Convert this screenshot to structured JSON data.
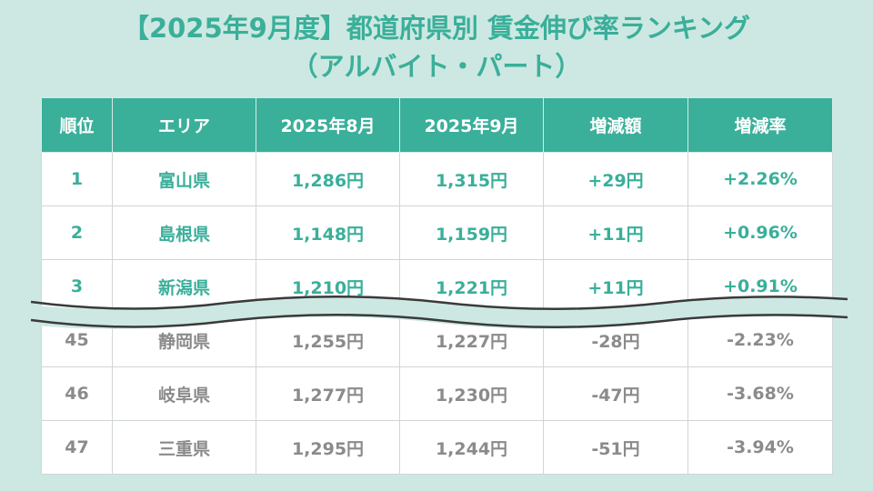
{
  "title": {
    "line1": "【2025年9月度】都道府県別 賃金伸び率ランキング",
    "line2": "（アルバイト・パート）"
  },
  "table": {
    "headers": [
      "順位",
      "エリア",
      "2025年8月",
      "2025年9月",
      "増減額",
      "増減率"
    ],
    "top_rows": [
      [
        "1",
        "富山県",
        "1,286円",
        "1,315円",
        "+29円",
        "+2.26%"
      ],
      [
        "2",
        "島根県",
        "1,148円",
        "1,159円",
        "+11円",
        "+0.96%"
      ],
      [
        "3",
        "新潟県",
        "1,210円",
        "1,221円",
        "+11円",
        "+0.91%"
      ]
    ],
    "bottom_rows": [
      [
        "45",
        "静岡県",
        "1,255円",
        "1,227円",
        "-28円",
        "-2.23%"
      ],
      [
        "46",
        "岐阜県",
        "1,277円",
        "1,230円",
        "-47円",
        "-3.68%"
      ],
      [
        "47",
        "三重県",
        "1,295円",
        "1,244円",
        "-51円",
        "-3.94%"
      ]
    ]
  },
  "colors": {
    "accent": "#3aaf9a",
    "background": "#cde8e2",
    "muted_text": "#8b8b8b"
  }
}
